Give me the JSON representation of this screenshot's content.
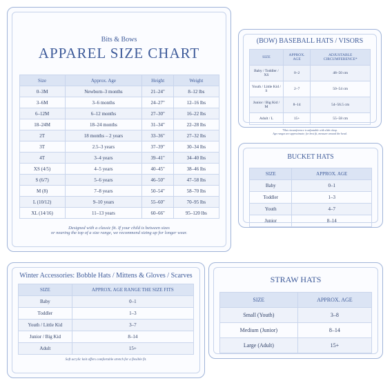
{
  "apparel": {
    "brand": "Bits & Bows",
    "title": "APPAREL SIZE CHART",
    "headers": [
      "Size",
      "Approx. Age",
      "Height",
      "Weight"
    ],
    "rows": [
      [
        "0–3M",
        "Newborn–3 months",
        "21–24\"",
        "8–12 lbs"
      ],
      [
        "3–6M",
        "3–6 months",
        "24–27\"",
        "12–16 lbs"
      ],
      [
        "6–12M",
        "6–12 months",
        "27–30\"",
        "16–22 lbs"
      ],
      [
        "18–24M",
        "18–24 months",
        "31–34\"",
        "22–28 lbs"
      ],
      [
        "2T",
        "18 months – 2 years",
        "33–36\"",
        "27–32 lbs"
      ],
      [
        "3T",
        "2.5–3 years",
        "37–39\"",
        "30–34 lbs"
      ],
      [
        "4T",
        "3–4 years",
        "39–41\"",
        "34–40 lbs"
      ],
      [
        "XS (4/5)",
        "4–5 years",
        "40–45\"",
        "38–46 lbs"
      ],
      [
        "S (6/7)",
        "5–6 years",
        "46–50\"",
        "47–58 lbs"
      ],
      [
        "M (8)",
        "7–8 years",
        "50–54\"",
        "58–70 lbs"
      ],
      [
        "L (10/12)",
        "9–10 years",
        "55–60\"",
        "70–95 lbs"
      ],
      [
        "XL (14/16)",
        "11–13 years",
        "60–66\"",
        "95–120 lbs"
      ]
    ],
    "note": [
      "Designed with a classic fit. If your child is between sizes",
      "or nearing the top of a size range, we recommend sizing up for longer wear."
    ]
  },
  "baseball": {
    "title": "(BOW) BASEBALL HATS / VISORS",
    "headers": [
      "SIZE",
      "APPROX. AGE",
      "ADJUSTABLE CIRCUMFERENCE*"
    ],
    "rows": [
      [
        "Baby / Toddler / XS",
        "0–2",
        "48–50 cm"
      ],
      [
        "Youth / Little Kid / S",
        "2–7",
        "50–54 cm"
      ],
      [
        "Junior / Big Kid / M",
        "8–14",
        "54–56.5 cm"
      ],
      [
        "Adult / L",
        "15+",
        "55–58 cm"
      ]
    ],
    "note": [
      "*Hat circumference is adjustable with slide clasp.",
      "Age ranges are approximate; for best fit, measure around the head."
    ]
  },
  "bucket": {
    "title": "BUCKET HATS",
    "headers": [
      "SIZE",
      "APPROX. AGE"
    ],
    "rows": [
      [
        "Baby",
        "0–1"
      ],
      [
        "Toddler",
        "1–3"
      ],
      [
        "Youth",
        "4–7"
      ],
      [
        "Junior",
        "8–14"
      ]
    ]
  },
  "winter": {
    "title": "Winter Accessories: Bobble Hats / Mittens & Gloves / Scarves",
    "headers": [
      "SIZE",
      "APPROX. AGE RANGE THE SIZE FITS"
    ],
    "rows": [
      [
        "Baby",
        "0–1"
      ],
      [
        "Toddler",
        "1–3"
      ],
      [
        "Youth / Little Kid",
        "3–7"
      ],
      [
        "Junior / Big Kid",
        "8–14"
      ],
      [
        "Adult",
        "15+"
      ]
    ],
    "note": [
      "Soft acrylic knit offers comfortable stretch for a flexible fit."
    ]
  },
  "straw": {
    "title": "STRAW HATS",
    "headers": [
      "SIZE",
      "APPROX. AGE"
    ],
    "rows": [
      [
        "Small (Youth)",
        "3–8"
      ],
      [
        "Medium (Junior)",
        "8–14"
      ],
      [
        "Large (Adult)",
        "15+"
      ]
    ]
  }
}
